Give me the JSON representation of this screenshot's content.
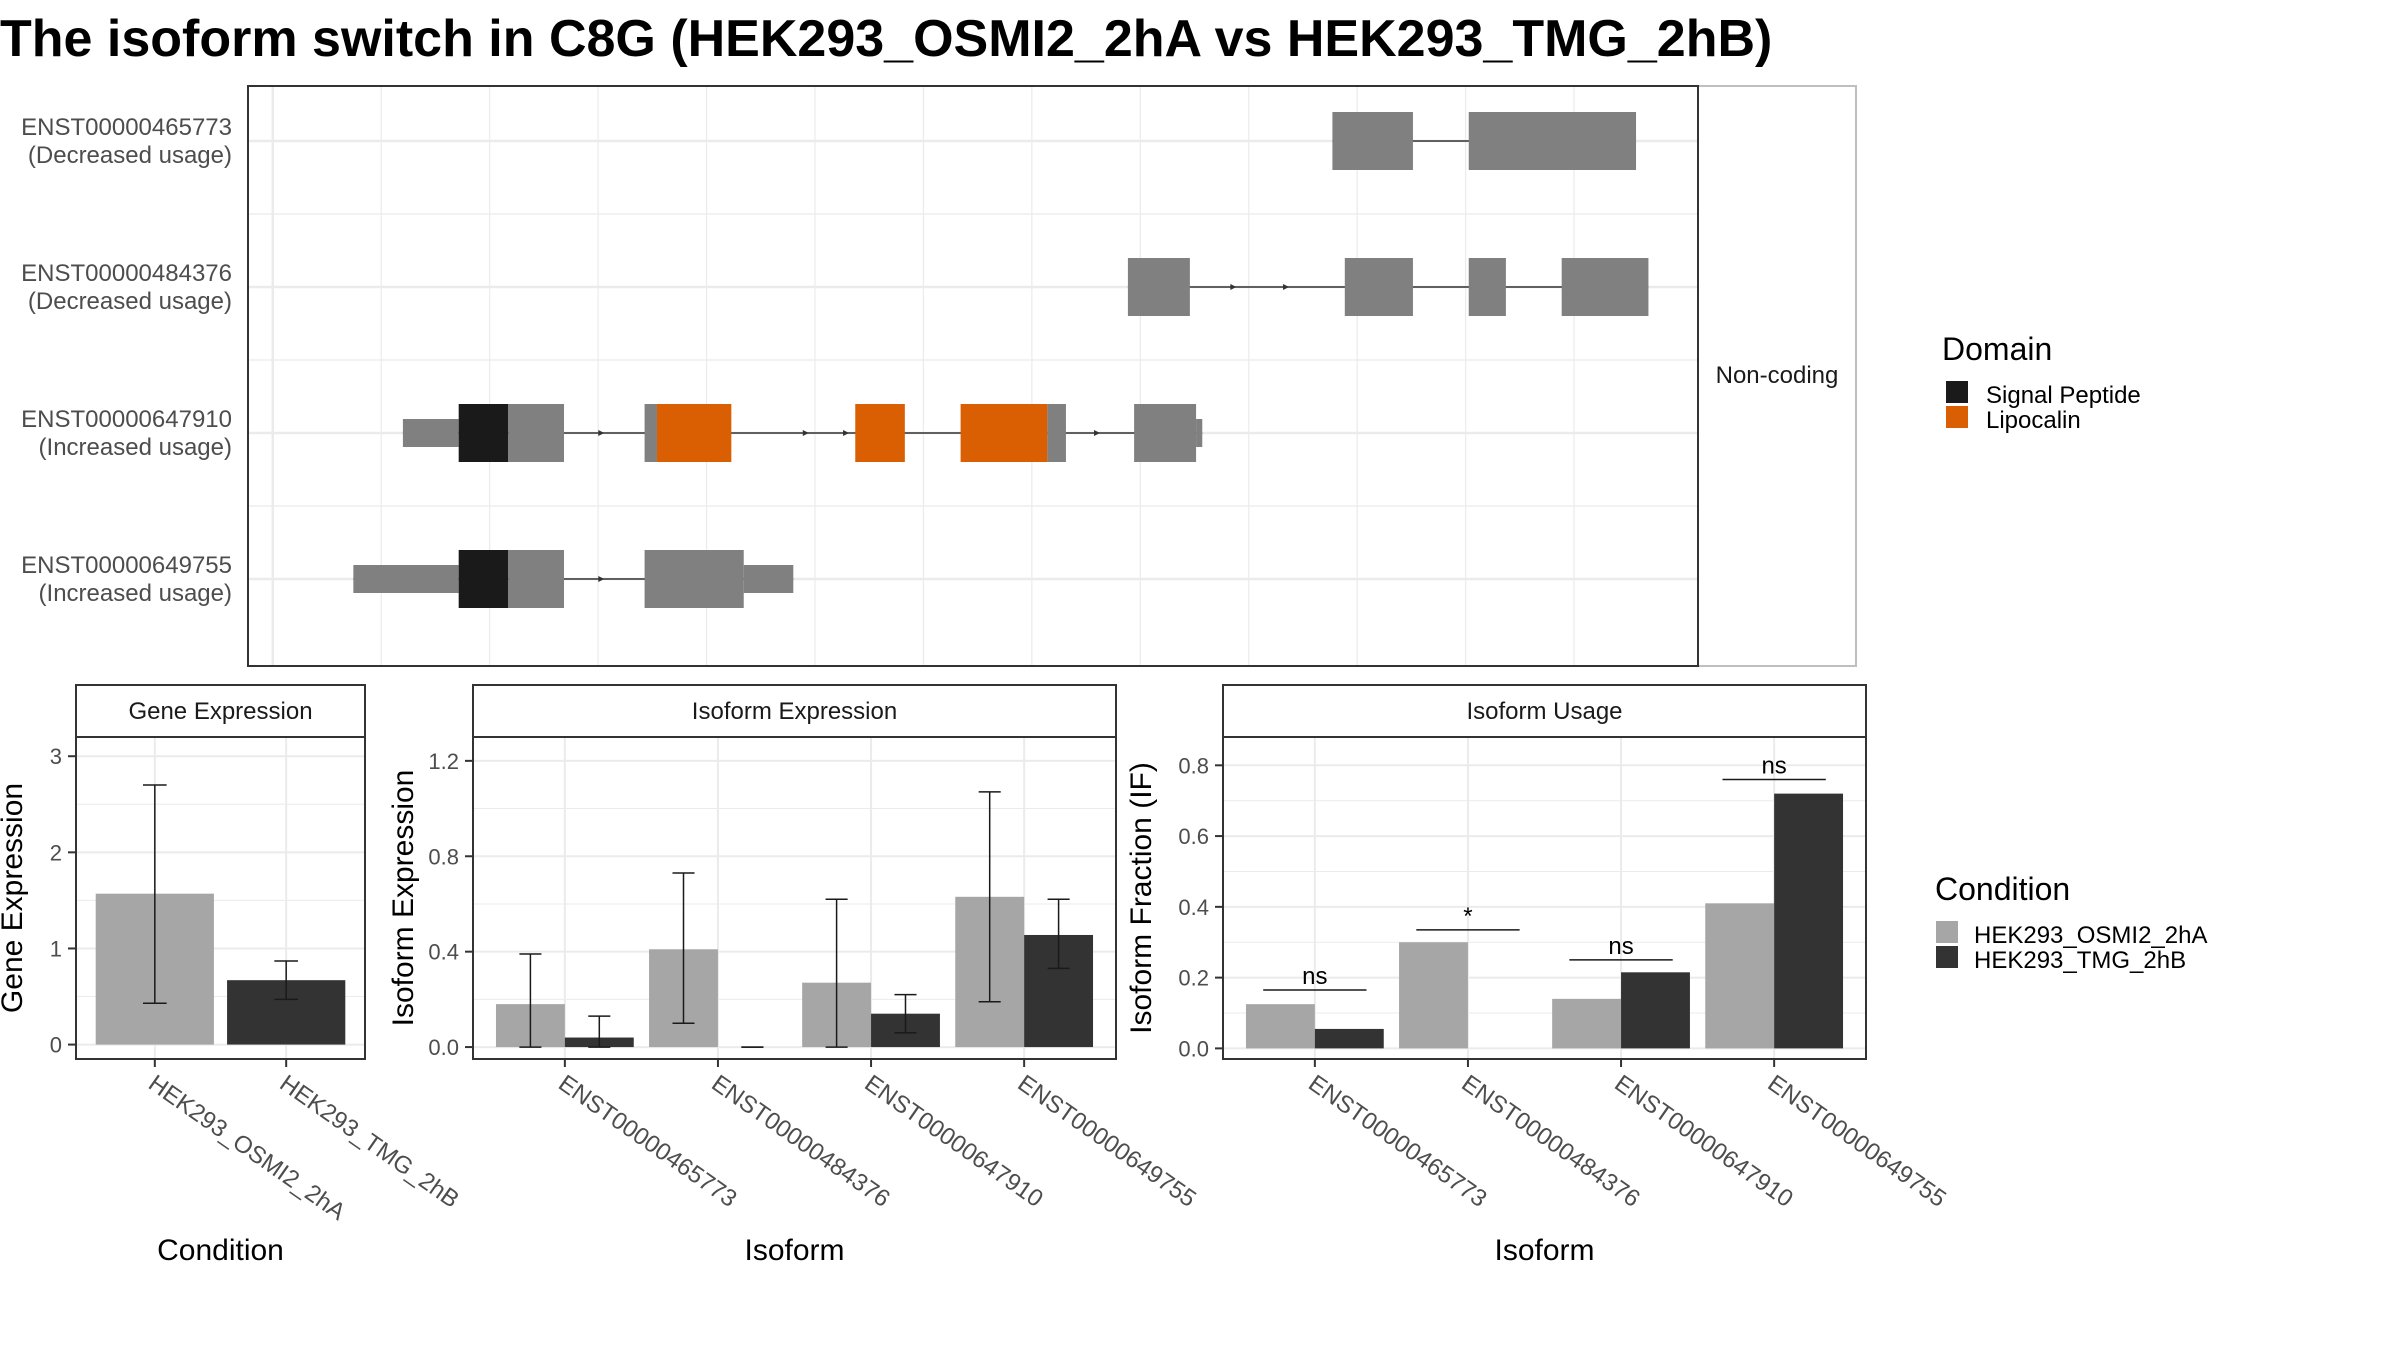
{
  "title": "The isoform switch in C8G (HEK293_OSMI2_2hA vs HEK293_TMG_2hB)",
  "colors": {
    "exon": "#808080",
    "intron": "#333333",
    "signal_peptide": "#1a1a1a",
    "lipocalin": "#d95f02",
    "cond_a": "#a6a6a6",
    "cond_b": "#333333",
    "panel_border": "#333333",
    "strip_fill": "#ffffff",
    "grid": "#ebebeb"
  },
  "structure": {
    "facet_label": "Non-coding",
    "isoforms": [
      {
        "id": "ENST00000465773",
        "usage": "(Decreased usage)",
        "exons": [
          {
            "start": 5600,
            "end": 5860,
            "h": "full"
          },
          {
            "start": 6040,
            "end": 6580,
            "h": "full"
          }
        ],
        "arrows": []
      },
      {
        "id": "ENST00000484376",
        "usage": "(Decreased usage)",
        "exons": [
          {
            "start": 4940,
            "end": 5140,
            "h": "full"
          },
          {
            "start": 5640,
            "end": 5860,
            "h": "full"
          },
          {
            "start": 6040,
            "end": 6160,
            "h": "full"
          },
          {
            "start": 6340,
            "end": 6620,
            "h": "full"
          }
        ],
        "arrows": [
          5120,
          5290,
          5460
        ]
      },
      {
        "id": "ENST00000647910",
        "usage": "(Increased usage)",
        "exons": [
          {
            "start": 2600,
            "end": 2780,
            "h": "utr"
          },
          {
            "start": 2780,
            "end": 2940,
            "h": "full",
            "domain": "signal_peptide"
          },
          {
            "start": 2940,
            "end": 3120,
            "h": "full"
          },
          {
            "start": 3380,
            "end": 3420,
            "h": "full"
          },
          {
            "start": 3420,
            "end": 3660,
            "h": "full",
            "domain": "lipocalin"
          },
          {
            "start": 4060,
            "end": 4220,
            "h": "full",
            "domain": "lipocalin"
          },
          {
            "start": 4400,
            "end": 4680,
            "h": "full",
            "domain": "lipocalin"
          },
          {
            "start": 4680,
            "end": 4740,
            "h": "full"
          },
          {
            "start": 4960,
            "end": 5160,
            "h": "full"
          },
          {
            "start": 5160,
            "end": 5180,
            "h": "utr"
          }
        ],
        "arrows": [
          3250,
          3910,
          4040,
          4850
        ]
      },
      {
        "id": "ENST00000649755",
        "usage": "(Increased usage)",
        "exons": [
          {
            "start": 2440,
            "end": 2780,
            "h": "utr"
          },
          {
            "start": 2780,
            "end": 2940,
            "h": "full",
            "domain": "signal_peptide"
          },
          {
            "start": 2940,
            "end": 3120,
            "h": "full"
          },
          {
            "start": 3380,
            "end": 3700,
            "h": "full"
          },
          {
            "start": 3700,
            "end": 3860,
            "h": "utr"
          }
        ],
        "arrows": [
          3250
        ]
      }
    ]
  },
  "domain_legend": {
    "title": "Domain",
    "items": [
      {
        "label": "Signal Peptide",
        "color": "#1a1a1a"
      },
      {
        "label": "Lipocalin",
        "color": "#d95f02"
      }
    ]
  },
  "condition_legend": {
    "title": "Condition",
    "items": [
      {
        "label": "HEK293_OSMI2_2hA",
        "color": "#a6a6a6"
      },
      {
        "label": "HEK293_TMG_2hB",
        "color": "#333333"
      }
    ]
  },
  "chart_data": [
    {
      "type": "bar",
      "title": "Gene Expression",
      "xlabel": "Condition",
      "ylabel": "Gene Expression",
      "ylim": [
        -0.15,
        3.2
      ],
      "yticks": [
        0,
        1,
        2,
        3
      ],
      "categories": [
        "HEK293_OSMI2_2hA",
        "HEK293_TMG_2hB"
      ],
      "values": [
        1.57,
        0.67
      ],
      "error_low": [
        0.43,
        0.47
      ],
      "error_high": [
        2.7,
        0.87
      ]
    },
    {
      "type": "bar",
      "title": "Isoform Expression",
      "xlabel": "Isoform",
      "ylabel": "Isoform Expression",
      "ylim": [
        -0.05,
        1.3
      ],
      "yticks": [
        "0.0",
        "0.4",
        "0.8",
        "1.2"
      ],
      "categories": [
        "ENST00000465773",
        "ENST00000484376",
        "ENST00000647910",
        "ENST00000649755"
      ],
      "series": [
        {
          "name": "HEK293_OSMI2_2hA",
          "values": [
            0.18,
            0.41,
            0.27,
            0.63
          ],
          "error_low": [
            0.0,
            0.1,
            0.0,
            0.19
          ],
          "error_high": [
            0.39,
            0.73,
            0.62,
            1.07
          ]
        },
        {
          "name": "HEK293_TMG_2hB",
          "values": [
            0.04,
            0.0,
            0.14,
            0.47
          ],
          "error_low": [
            0.0,
            0.0,
            0.06,
            0.33
          ],
          "error_high": [
            0.13,
            0.0,
            0.22,
            0.62
          ]
        }
      ]
    },
    {
      "type": "bar",
      "title": "Isoform Usage",
      "xlabel": "Isoform",
      "ylabel": "Isoform Fraction (IF)",
      "ylim": [
        -0.03,
        0.88
      ],
      "yticks": [
        "0.0",
        "0.2",
        "0.4",
        "0.6",
        "0.8"
      ],
      "categories": [
        "ENST00000465773",
        "ENST00000484376",
        "ENST00000647910",
        "ENST00000649755"
      ],
      "series": [
        {
          "name": "HEK293_OSMI2_2hA",
          "values": [
            0.125,
            0.3,
            0.14,
            0.41
          ]
        },
        {
          "name": "HEK293_TMG_2hB",
          "values": [
            0.055,
            0.0,
            0.215,
            0.72
          ]
        }
      ],
      "significance": [
        {
          "label": "ns",
          "y": 0.165
        },
        {
          "label": "*",
          "y": 0.335
        },
        {
          "label": "ns",
          "y": 0.25
        },
        {
          "label": "ns",
          "y": 0.76
        }
      ]
    }
  ]
}
